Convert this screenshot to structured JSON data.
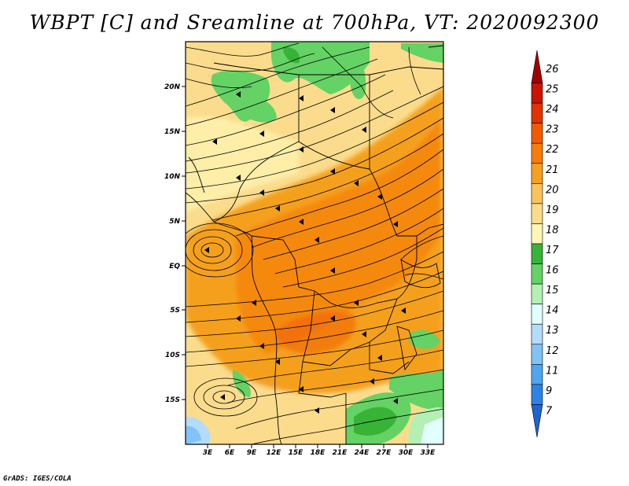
{
  "title": "WBPT [C] and Sreamline at 700hPa, VT: 2020092300",
  "credit": "GrADS: IGES/COLA",
  "map": {
    "lat_range": [
      -20,
      25
    ],
    "lon_range": [
      0,
      35
    ],
    "lat_ticks": [
      {
        "value": 20,
        "label": "20N"
      },
      {
        "value": 15,
        "label": "15N"
      },
      {
        "value": 10,
        "label": "10N"
      },
      {
        "value": 5,
        "label": "5N"
      },
      {
        "value": 0,
        "label": "EQ"
      },
      {
        "value": -5,
        "label": "5S"
      },
      {
        "value": -10,
        "label": "10S"
      },
      {
        "value": -15,
        "label": "15S"
      }
    ],
    "lon_ticks": [
      {
        "value": 3,
        "label": "3E"
      },
      {
        "value": 6,
        "label": "6E"
      },
      {
        "value": 9,
        "label": "9E"
      },
      {
        "value": 12,
        "label": "12E"
      },
      {
        "value": 15,
        "label": "15E"
      },
      {
        "value": 18,
        "label": "18E"
      },
      {
        "value": 21,
        "label": "21E"
      },
      {
        "value": 24,
        "label": "24E"
      },
      {
        "value": 27,
        "label": "27E"
      },
      {
        "value": 30,
        "label": "30E"
      },
      {
        "value": 33,
        "label": "33E"
      }
    ]
  },
  "colorbar": {
    "levels": [
      {
        "label": "26",
        "color": "#a00000"
      },
      {
        "label": "25",
        "color": "#c81400"
      },
      {
        "label": "24",
        "color": "#e13200"
      },
      {
        "label": "23",
        "color": "#f05a00"
      },
      {
        "label": "22",
        "color": "#f57d0a"
      },
      {
        "label": "21",
        "color": "#f5a01e"
      },
      {
        "label": "20",
        "color": "#fac35a"
      },
      {
        "label": "19",
        "color": "#fadc8c"
      },
      {
        "label": "18",
        "color": "#fff5b4"
      },
      {
        "label": "17",
        "color": "#37b437"
      },
      {
        "label": "16",
        "color": "#64d264"
      },
      {
        "label": "15",
        "color": "#b4f0b4"
      },
      {
        "label": "14",
        "color": "#e1ffff"
      },
      {
        "label": "13",
        "color": "#b4dcfa"
      },
      {
        "label": "12",
        "color": "#82c3f5"
      },
      {
        "label": "11",
        "color": "#50a5f0"
      },
      {
        "label": "9",
        "color": "#2d82e6"
      },
      {
        "label": "7",
        "color": "#1e64d2"
      }
    ]
  },
  "field_regions": [
    {
      "name": "sahel-green-north",
      "color": "#64d264"
    },
    {
      "name": "orange-core",
      "color": "#f5a01e"
    },
    {
      "name": "deep-orange-band",
      "color": "#f57d0a"
    },
    {
      "name": "southeast-green",
      "color": "#37b437"
    },
    {
      "name": "southwest-blue",
      "color": "#82c3f5"
    }
  ]
}
